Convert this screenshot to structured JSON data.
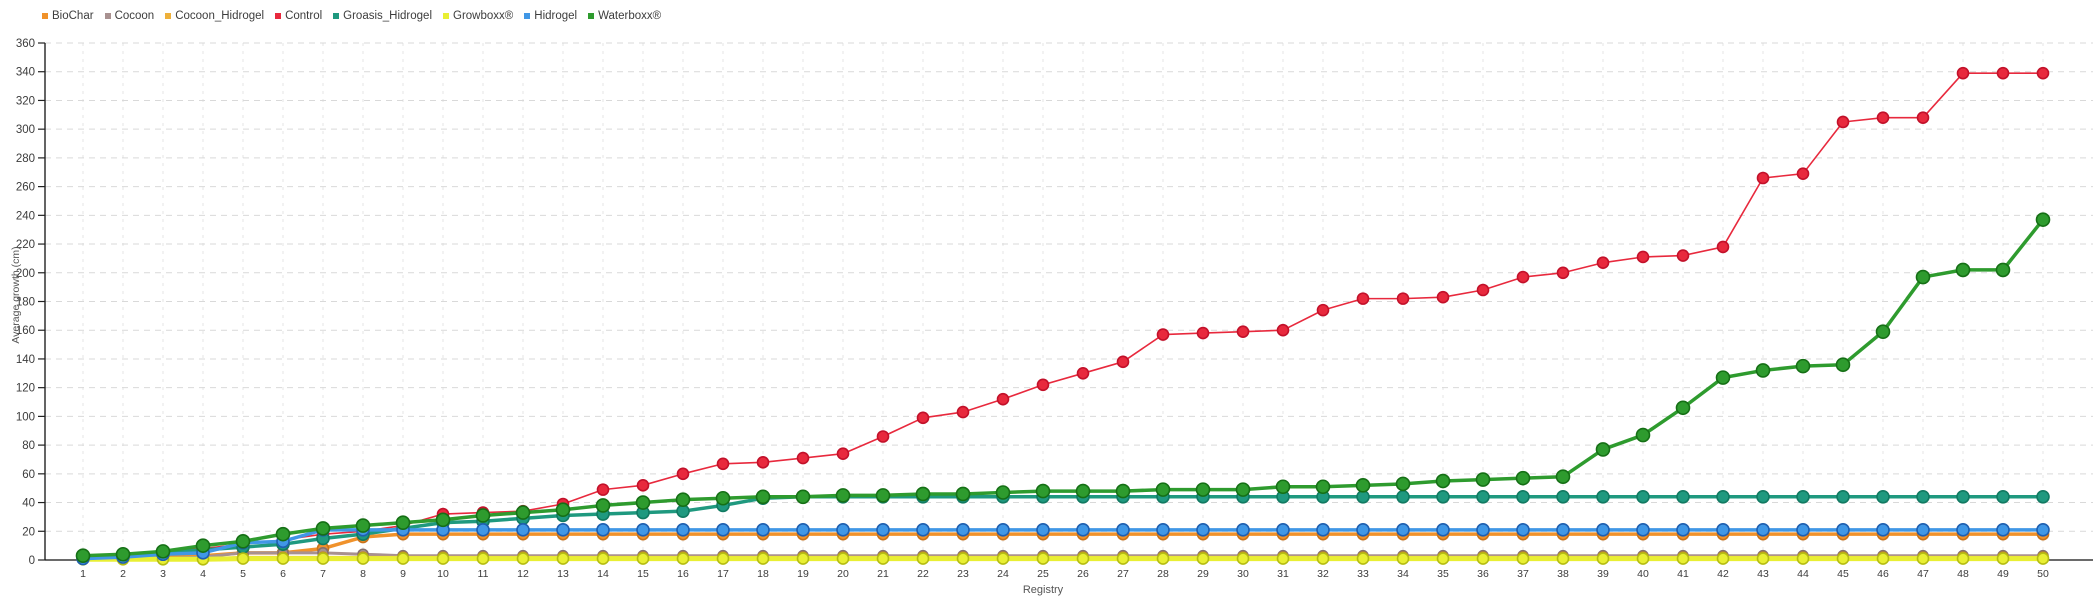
{
  "chart_data": {
    "type": "line",
    "title": "",
    "xlabel": "Registry",
    "ylabel": "Average growth (cm)",
    "ylim": [
      0,
      360
    ],
    "y_tick_step": 20,
    "grid": true,
    "legend_position": "top-left",
    "x_ticks": [
      1,
      2,
      3,
      4,
      5,
      6,
      7,
      8,
      9,
      10,
      11,
      12,
      13,
      14,
      15,
      16,
      17,
      18,
      19,
      20,
      21,
      22,
      23,
      24,
      25,
      26,
      27,
      28,
      29,
      30,
      31,
      32,
      33,
      34,
      35,
      36,
      37,
      38,
      39,
      40,
      41,
      42,
      43,
      44,
      45,
      46,
      47,
      48,
      49,
      50
    ],
    "series": [
      {
        "name": "BioChar",
        "color": "#f0922b",
        "dot_color": "#c9731a",
        "line_width": 3.5,
        "dot_radius": 5.5,
        "values": [
          1,
          1,
          2,
          3,
          5,
          5,
          8,
          16,
          18,
          18,
          18,
          18,
          18,
          18,
          18,
          18,
          18,
          18,
          18,
          18,
          18,
          18,
          18,
          18,
          18,
          18,
          18,
          18,
          18,
          18,
          18,
          18,
          18,
          18,
          18,
          18,
          18,
          18,
          18,
          18,
          18,
          18,
          18,
          18,
          18,
          18,
          18,
          18,
          18,
          18
        ]
      },
      {
        "name": "Cocoon",
        "color": "#a89190",
        "dot_color": "#84706e",
        "line_width": 3,
        "dot_radius": 5,
        "values": [
          1,
          1,
          1,
          2,
          5,
          5,
          5,
          4,
          3,
          3,
          3,
          3,
          3,
          3,
          3,
          3,
          3,
          3,
          3,
          3,
          3,
          3,
          3,
          3,
          3,
          3,
          3,
          3,
          3,
          3,
          3,
          3,
          3,
          3,
          3,
          3,
          3,
          3,
          3,
          3,
          3,
          3,
          3,
          3,
          3,
          3,
          3,
          3,
          3,
          3
        ]
      },
      {
        "name": "Cocoon_Hidrogel",
        "color": "#eeb03a",
        "dot_color": "#c68e1c",
        "line_width": 2.5,
        "dot_radius": 5,
        "values": [
          1,
          1,
          1,
          1,
          2,
          2,
          2,
          2,
          2,
          2,
          2,
          2,
          2,
          2,
          2,
          2,
          2,
          2,
          2,
          2,
          2,
          2,
          2,
          2,
          2,
          2,
          2,
          2,
          2,
          2,
          2,
          2,
          2,
          2,
          2,
          2,
          2,
          2,
          2,
          2,
          2,
          2,
          2,
          2,
          2,
          2,
          2,
          2,
          2,
          2
        ]
      },
      {
        "name": "Control",
        "color": "#e8293d",
        "dot_color": "#c2112a",
        "line_width": 1.6,
        "dot_radius": 5.5,
        "values": [
          2,
          3,
          6,
          8,
          11,
          14,
          18,
          20,
          24,
          32,
          33,
          34,
          39,
          49,
          52,
          60,
          67,
          68,
          71,
          74,
          86,
          99,
          103,
          112,
          122,
          130,
          138,
          157,
          158,
          159,
          160,
          174,
          182,
          182,
          183,
          188,
          197,
          200,
          207,
          211,
          212,
          218,
          266,
          269,
          305,
          308,
          308,
          339,
          339,
          339
        ]
      },
      {
        "name": "Groasis_Hidrogel",
        "color": "#1f997f",
        "dot_color": "#127a62",
        "line_width": 3.5,
        "dot_radius": 6,
        "values": [
          2,
          3,
          5,
          7,
          9,
          11,
          15,
          18,
          22,
          26,
          27,
          29,
          31,
          32,
          33,
          34,
          38,
          43,
          44,
          44,
          44,
          44,
          44,
          44,
          44,
          44,
          44,
          44,
          44,
          44,
          44,
          44,
          44,
          44,
          44,
          44,
          44,
          44,
          44,
          44,
          44,
          44,
          44,
          44,
          44,
          44,
          44,
          44,
          44,
          44
        ]
      },
      {
        "name": "Growboxx®",
        "color": "#e9ef33",
        "dot_color": "#b5bd12",
        "line_width": 5,
        "dot_radius": 5.5,
        "values": [
          0.5,
          0.5,
          0.5,
          0.5,
          1,
          1,
          1,
          1,
          1,
          1,
          1,
          1,
          1,
          1,
          1,
          1,
          1,
          1,
          1,
          1,
          1,
          1,
          1,
          1,
          1,
          1,
          1,
          1,
          1,
          1,
          1,
          1,
          1,
          1,
          1,
          1,
          1,
          1,
          1,
          1,
          1,
          1,
          1,
          1,
          1,
          1,
          1,
          1,
          1,
          1
        ]
      },
      {
        "name": "Hidrogel",
        "color": "#4097e6",
        "dot_color": "#1f5fb0",
        "line_width": 3.5,
        "dot_radius": 6,
        "values": [
          1,
          2,
          4,
          5,
          12,
          13,
          21,
          21,
          21,
          21,
          21,
          21,
          21,
          21,
          21,
          21,
          21,
          21,
          21,
          21,
          21,
          21,
          21,
          21,
          21,
          21,
          21,
          21,
          21,
          21,
          21,
          21,
          21,
          21,
          21,
          21,
          21,
          21,
          21,
          21,
          21,
          21,
          21,
          21,
          21,
          21,
          21,
          21,
          21,
          21
        ]
      },
      {
        "name": "Waterboxx®",
        "color": "#2e9b2e",
        "dot_color": "#156f15",
        "line_width": 3.5,
        "dot_radius": 6.5,
        "values": [
          3,
          4,
          6,
          10,
          13,
          18,
          22,
          24,
          26,
          28,
          31,
          33,
          35,
          38,
          40,
          42,
          43,
          44,
          44,
          45,
          45,
          46,
          46,
          47,
          48,
          48,
          48,
          49,
          49,
          49,
          51,
          51,
          52,
          53,
          55,
          56,
          57,
          58,
          77,
          87,
          106,
          127,
          132,
          135,
          136,
          159,
          197,
          202,
          202,
          237
        ]
      }
    ]
  }
}
